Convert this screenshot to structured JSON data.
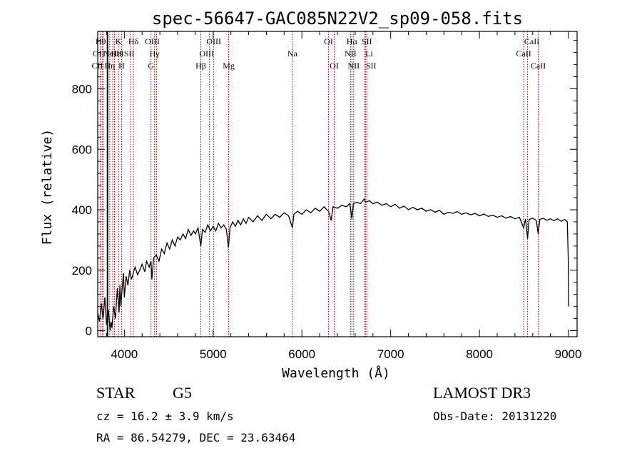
{
  "chart_data": {
    "type": "line",
    "title": "spec-56647-GAC085N22V2_sp09-058.fits",
    "xlabel": "Wavelength (Å)",
    "ylabel": "Flux (relative)",
    "xlim": [
      3700,
      9100
    ],
    "ylim": [
      -20,
      990
    ],
    "xticks": [
      4000,
      5000,
      6000,
      7000,
      8000,
      9000
    ],
    "yticks": [
      0,
      200,
      400,
      600,
      800
    ],
    "xtick_labels": [
      "4000",
      "5000",
      "6000",
      "7000",
      "8000",
      "9000"
    ],
    "ytick_labels": [
      "0",
      "200",
      "400",
      "600",
      "800"
    ],
    "grid": false,
    "series": [
      {
        "name": "spectrum",
        "color": "#000000",
        "points": [
          [
            3700,
            60
          ],
          [
            3720,
            30
          ],
          [
            3740,
            90
          ],
          [
            3760,
            40
          ],
          [
            3780,
            110
          ],
          [
            3800,
            20
          ],
          [
            3820,
            70
          ],
          [
            3840,
            0
          ],
          [
            3850,
            30
          ],
          [
            3860,
            10
          ],
          [
            3880,
            80
          ],
          [
            3900,
            40
          ],
          [
            3920,
            140
          ],
          [
            3940,
            60
          ],
          [
            3950,
            150
          ],
          [
            3960,
            80
          ],
          [
            3970,
            120
          ],
          [
            3990,
            190
          ],
          [
            4000,
            110
          ],
          [
            4020,
            180
          ],
          [
            4040,
            150
          ],
          [
            4060,
            200
          ],
          [
            4080,
            170
          ],
          [
            4100,
            190
          ],
          [
            4120,
            210
          ],
          [
            4150,
            185
          ],
          [
            4180,
            205
          ],
          [
            4200,
            220
          ],
          [
            4230,
            195
          ],
          [
            4250,
            230
          ],
          [
            4280,
            210
          ],
          [
            4300,
            230
          ],
          [
            4310,
            170
          ],
          [
            4330,
            240
          ],
          [
            4360,
            250
          ],
          [
            4390,
            230
          ],
          [
            4420,
            270
          ],
          [
            4450,
            255
          ],
          [
            4480,
            290
          ],
          [
            4510,
            270
          ],
          [
            4540,
            300
          ],
          [
            4570,
            280
          ],
          [
            4600,
            310
          ],
          [
            4630,
            300
          ],
          [
            4660,
            320
          ],
          [
            4690,
            305
          ],
          [
            4720,
            335
          ],
          [
            4750,
            315
          ],
          [
            4780,
            330
          ],
          [
            4800,
            320
          ],
          [
            4830,
            340
          ],
          [
            4861,
            280
          ],
          [
            4880,
            335
          ],
          [
            4910,
            325
          ],
          [
            4940,
            350
          ],
          [
            4970,
            330
          ],
          [
            5000,
            345
          ],
          [
            5030,
            330
          ],
          [
            5060,
            355
          ],
          [
            5090,
            340
          ],
          [
            5120,
            350
          ],
          [
            5150,
            335
          ],
          [
            5172,
            275
          ],
          [
            5190,
            340
          ],
          [
            5220,
            360
          ],
          [
            5250,
            345
          ],
          [
            5280,
            365
          ],
          [
            5310,
            350
          ],
          [
            5340,
            370
          ],
          [
            5370,
            355
          ],
          [
            5400,
            375
          ],
          [
            5450,
            360
          ],
          [
            5500,
            380
          ],
          [
            5550,
            365
          ],
          [
            5600,
            385
          ],
          [
            5650,
            370
          ],
          [
            5700,
            385
          ],
          [
            5750,
            375
          ],
          [
            5800,
            390
          ],
          [
            5850,
            380
          ],
          [
            5893,
            340
          ],
          [
            5910,
            385
          ],
          [
            5950,
            395
          ],
          [
            6000,
            385
          ],
          [
            6050,
            400
          ],
          [
            6100,
            390
          ],
          [
            6150,
            405
          ],
          [
            6200,
            395
          ],
          [
            6250,
            410
          ],
          [
            6280,
            400
          ],
          [
            6300,
            395
          ],
          [
            6330,
            365
          ],
          [
            6350,
            410
          ],
          [
            6400,
            405
          ],
          [
            6450,
            415
          ],
          [
            6500,
            410
          ],
          [
            6540,
            420
          ],
          [
            6563,
            370
          ],
          [
            6580,
            420
          ],
          [
            6620,
            425
          ],
          [
            6660,
            420
          ],
          [
            6700,
            435
          ],
          [
            6720,
            425
          ],
          [
            6760,
            430
          ],
          [
            6800,
            420
          ],
          [
            6850,
            425
          ],
          [
            6900,
            415
          ],
          [
            6950,
            420
          ],
          [
            7000,
            410
          ],
          [
            7050,
            418
          ],
          [
            7100,
            405
          ],
          [
            7150,
            412
          ],
          [
            7200,
            400
          ],
          [
            7250,
            408
          ],
          [
            7300,
            400
          ],
          [
            7350,
            405
          ],
          [
            7400,
            395
          ],
          [
            7450,
            400
          ],
          [
            7500,
            392
          ],
          [
            7550,
            398
          ],
          [
            7600,
            385
          ],
          [
            7650,
            392
          ],
          [
            7700,
            388
          ],
          [
            7750,
            394
          ],
          [
            7800,
            385
          ],
          [
            7850,
            390
          ],
          [
            7900,
            383
          ],
          [
            7950,
            388
          ],
          [
            8000,
            380
          ],
          [
            8050,
            386
          ],
          [
            8100,
            378
          ],
          [
            8150,
            382
          ],
          [
            8200,
            375
          ],
          [
            8250,
            380
          ],
          [
            8300,
            372
          ],
          [
            8350,
            378
          ],
          [
            8400,
            370
          ],
          [
            8450,
            375
          ],
          [
            8498,
            340
          ],
          [
            8520,
            370
          ],
          [
            8542,
            305
          ],
          [
            8560,
            368
          ],
          [
            8600,
            372
          ],
          [
            8640,
            365
          ],
          [
            8662,
            320
          ],
          [
            8680,
            368
          ],
          [
            8720,
            372
          ],
          [
            8760,
            365
          ],
          [
            8800,
            370
          ],
          [
            8840,
            364
          ],
          [
            8880,
            370
          ],
          [
            8920,
            362
          ],
          [
            8960,
            368
          ],
          [
            8990,
            360
          ],
          [
            9000,
            240
          ],
          [
            9005,
            80
          ]
        ]
      }
    ],
    "line_markers": [
      {
        "wavelength": 3727,
        "label": "OII",
        "row": 2,
        "dx": -2
      },
      {
        "wavelength": 3750,
        "label": "Hθ",
        "row": 1,
        "dx": -2
      },
      {
        "wavelength": 3760,
        "label": "CII",
        "row": 3,
        "dx": -8
      },
      {
        "wavelength": 3835,
        "label": "Hη",
        "row": 3,
        "dx": 0
      },
      {
        "wavelength": 3869,
        "label": "NeIII",
        "row": 2,
        "dx": 0
      },
      {
        "wavelength": 3889,
        "label": "HeI",
        "row": 2,
        "dx": 4
      },
      {
        "wavelength": 3934,
        "label": "K",
        "row": 1,
        "dx": 0
      },
      {
        "wavelength": 3969,
        "label": "H",
        "row": 3,
        "dx": 0
      },
      {
        "wavelength": 4070,
        "label": "SII",
        "row": 2,
        "dx": -2
      },
      {
        "wavelength": 4102,
        "label": "Hδ",
        "row": 1,
        "dx": 0
      },
      {
        "wavelength": 4300,
        "label": "G",
        "row": 3,
        "dx": 0
      },
      {
        "wavelength": 4340,
        "label": "Hγ",
        "row": 2,
        "dx": 0
      },
      {
        "wavelength": 4363,
        "label": "OIII",
        "row": 1,
        "dx": -6
      },
      {
        "wavelength": 4861,
        "label": "Hβ",
        "row": 3,
        "dx": 0
      },
      {
        "wavelength": 4959,
        "label": "OIII",
        "row": 2,
        "dx": -4
      },
      {
        "wavelength": 5007,
        "label": "OIII",
        "row": 1,
        "dx": 0
      },
      {
        "wavelength": 5175,
        "label": "Mg",
        "row": 3,
        "dx": 0
      },
      {
        "wavelength": 5893,
        "label": "Na",
        "row": 2,
        "dx": 0
      },
      {
        "wavelength": 6300,
        "label": "OI",
        "row": 1,
        "dx": 0
      },
      {
        "wavelength": 6364,
        "label": "OI",
        "row": 3,
        "dx": 0
      },
      {
        "wavelength": 6548,
        "label": "NII",
        "row": 2,
        "dx": 0
      },
      {
        "wavelength": 6563,
        "label": "Hα",
        "row": 1,
        "dx": 0
      },
      {
        "wavelength": 6583,
        "label": "NII",
        "row": 3,
        "dx": 0
      },
      {
        "wavelength": 6708,
        "label": "Li",
        "row": 2,
        "dx": 6
      },
      {
        "wavelength": 6716,
        "label": "SII",
        "row": 1,
        "dx": 2
      },
      {
        "wavelength": 6731,
        "label": "SII",
        "row": 3,
        "dx": 6
      },
      {
        "wavelength": 8498,
        "label": "CaII",
        "row": 2,
        "dx": 0
      },
      {
        "wavelength": 8542,
        "label": "CaII",
        "row": 1,
        "dx": 6
      },
      {
        "wavelength": 8662,
        "label": "CaII",
        "row": 3,
        "dx": 0
      }
    ],
    "marker_color": "#cc0000"
  },
  "annotations": {
    "object_class": "STAR",
    "subclass": "G5",
    "redshift_line": "cz = 16.2 ± 3.9 km/s",
    "coords_line": "RA =  86.54279, DEC =  23.63464",
    "survey": "LAMOST DR3",
    "obs_date": "Obs-Date: 20131220"
  }
}
